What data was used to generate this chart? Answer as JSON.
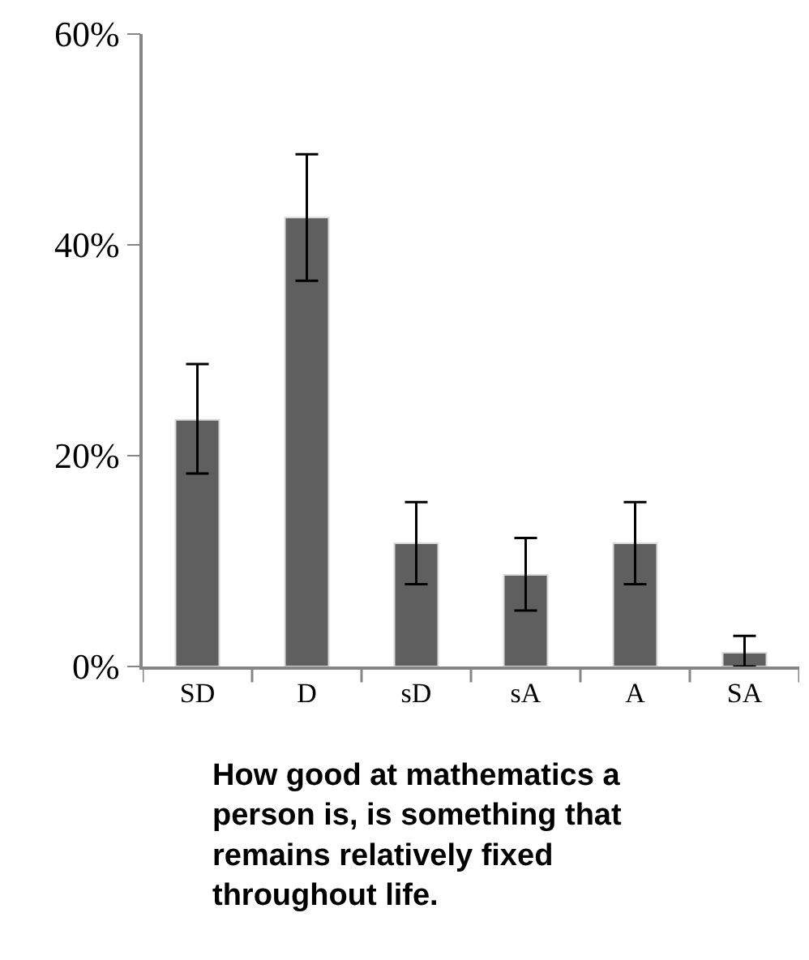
{
  "chart_data": {
    "type": "bar",
    "xlabel": "How good at mathematics a person is, is something that remains relatively fixed throughout life.",
    "categories": [
      "SD",
      "D",
      "sD",
      "sA",
      "A",
      "SA"
    ],
    "values": [
      23.4,
      42.6,
      11.7,
      8.7,
      11.7,
      1.3
    ],
    "errors": [
      [
        18.3,
        28.7
      ],
      [
        36.6,
        48.6
      ],
      [
        7.8,
        15.6
      ],
      [
        5.3,
        12.2
      ],
      [
        7.8,
        15.6
      ],
      [
        0,
        2.9
      ]
    ],
    "color": "#5f5f5f",
    "ylim": [
      0,
      60
    ],
    "yticks": [
      {
        "value": 0,
        "label": "0%"
      },
      {
        "value": 20,
        "label": "20%"
      },
      {
        "value": 40,
        "label": "40%"
      },
      {
        "value": 60,
        "label": "60%"
      }
    ]
  }
}
